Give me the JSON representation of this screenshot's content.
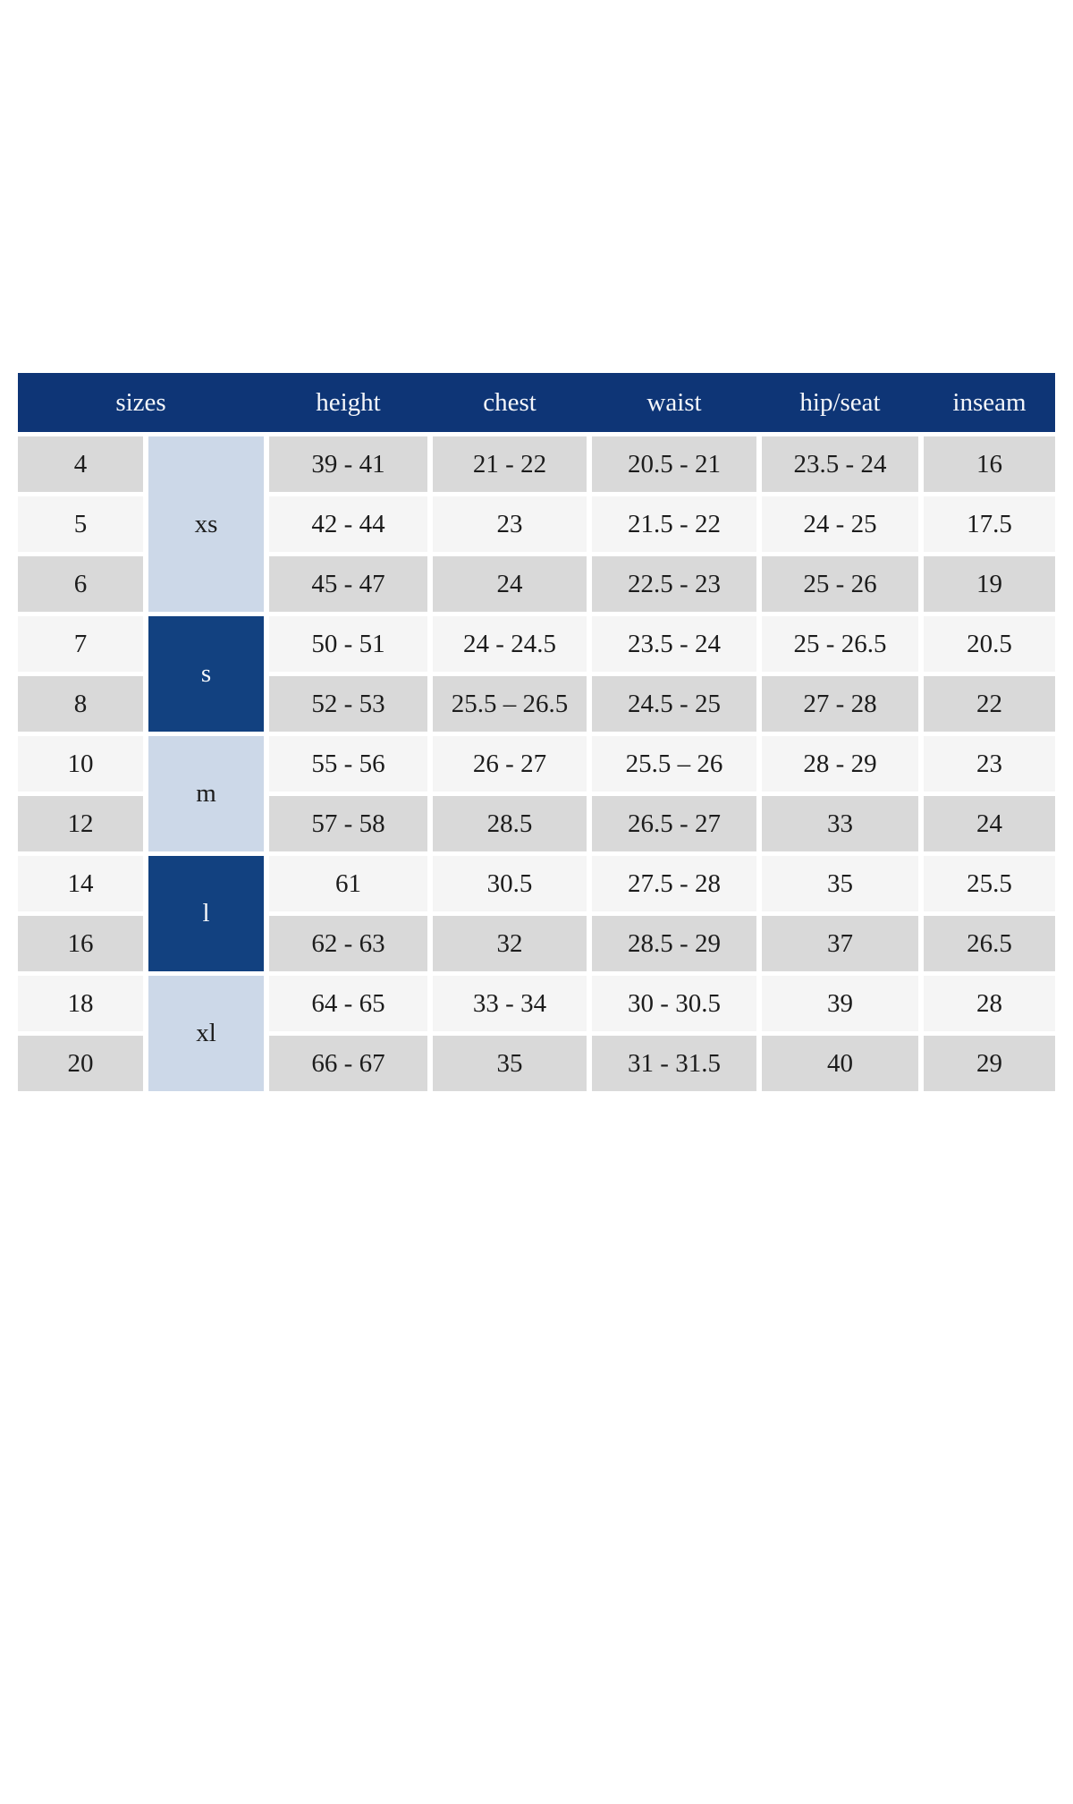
{
  "colors": {
    "header_bg": "#0e3576",
    "navy_group_cell_bg": "#124180",
    "light_blue_group_cell_bg": "#ccd8e8",
    "row_gray_bg": "#d9d9d9",
    "row_light_bg": "#f5f5f5",
    "header_text": "#f4f6fa",
    "body_text": "#1c1c1c",
    "page_bg": "#ffffff"
  },
  "chart_data": {
    "type": "table",
    "columns": [
      "sizes",
      "height",
      "chest",
      "waist",
      "hip/seat",
      "inseam"
    ],
    "size_groups": [
      {
        "label": "xs",
        "span": 3,
        "shade": "light-blue"
      },
      {
        "label": "s",
        "span": 2,
        "shade": "navy"
      },
      {
        "label": "m",
        "span": 2,
        "shade": "light-blue"
      },
      {
        "label": "l",
        "span": 2,
        "shade": "navy"
      },
      {
        "label": "xl",
        "span": 2,
        "shade": "light-blue"
      }
    ],
    "rows": [
      {
        "size": "4",
        "height": "39 - 41",
        "chest": "21 - 22",
        "waist": "20.5 - 21",
        "hip_seat": "23.5 - 24",
        "inseam": "16"
      },
      {
        "size": "5",
        "height": "42 - 44",
        "chest": "23",
        "waist": "21.5 - 22",
        "hip_seat": "24 - 25",
        "inseam": "17.5"
      },
      {
        "size": "6",
        "height": "45 - 47",
        "chest": "24",
        "waist": "22.5 - 23",
        "hip_seat": "25 - 26",
        "inseam": "19"
      },
      {
        "size": "7",
        "height": "50 - 51",
        "chest": "24 - 24.5",
        "waist": "23.5 - 24",
        "hip_seat": "25 - 26.5",
        "inseam": "20.5"
      },
      {
        "size": "8",
        "height": "52 - 53",
        "chest": "25.5 – 26.5",
        "waist": "24.5 - 25",
        "hip_seat": "27 - 28",
        "inseam": "22"
      },
      {
        "size": "10",
        "height": "55 - 56",
        "chest": "26 - 27",
        "waist": "25.5 – 26",
        "hip_seat": "28 - 29",
        "inseam": "23"
      },
      {
        "size": "12",
        "height": "57 - 58",
        "chest": "28.5",
        "waist": "26.5 - 27",
        "hip_seat": "33",
        "inseam": "24"
      },
      {
        "size": "14",
        "height": "61",
        "chest": "30.5",
        "waist": "27.5 - 28",
        "hip_seat": "35",
        "inseam": "25.5"
      },
      {
        "size": "16",
        "height": "62 - 63",
        "chest": "32",
        "waist": "28.5 - 29",
        "hip_seat": "37",
        "inseam": "26.5"
      },
      {
        "size": "18",
        "height": "64 - 65",
        "chest": "33 - 34",
        "waist": "30 - 30.5",
        "hip_seat": "39",
        "inseam": "28"
      },
      {
        "size": "20",
        "height": "66 - 67",
        "chest": "35",
        "waist": "31 - 31.5",
        "hip_seat": "40",
        "inseam": "29"
      }
    ]
  }
}
